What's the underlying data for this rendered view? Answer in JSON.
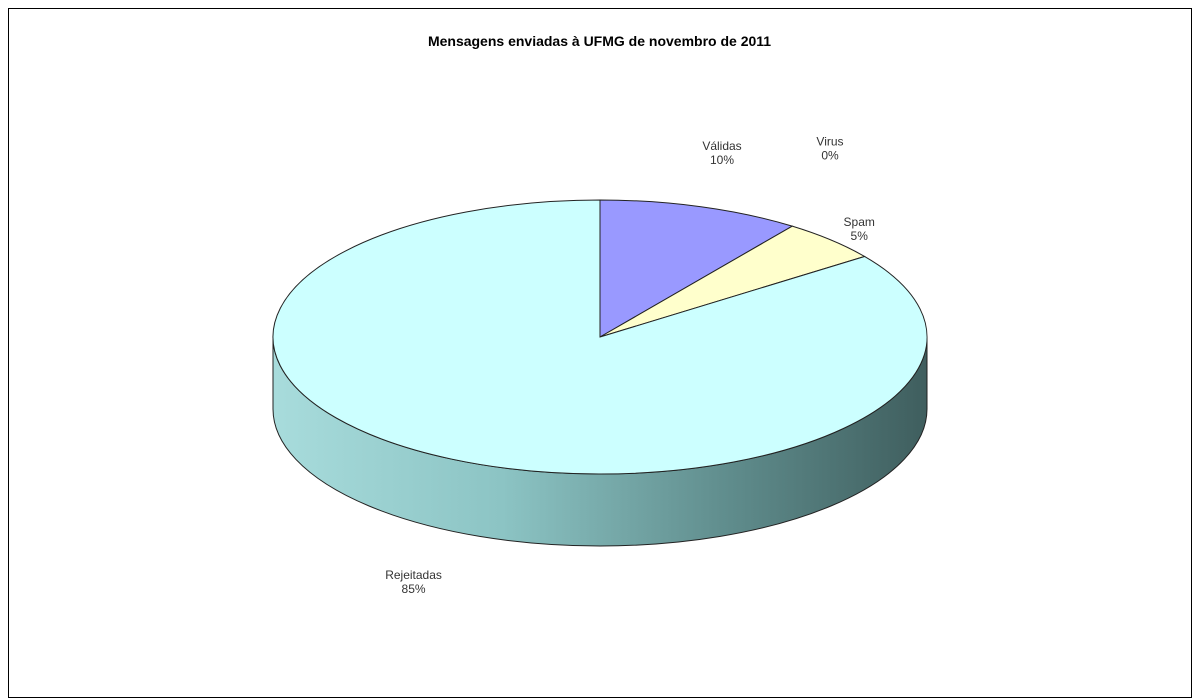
{
  "chart_data": {
    "type": "pie",
    "title": "Mensagens enviadas à UFMG de novembro de 2011",
    "slices": [
      {
        "name": "Válidas",
        "value": 10,
        "label": "10%",
        "color": "#9999ff"
      },
      {
        "name": "Spam",
        "value": 5,
        "label": "5%",
        "color": "#ffffcc"
      },
      {
        "name": "Rejeitadas",
        "value": 85,
        "label": "85%",
        "color": "#ccffff"
      },
      {
        "name": "Virus",
        "value": 0,
        "label": "0%",
        "color": "#ff8080"
      }
    ],
    "three_d": true,
    "legend": "none"
  }
}
